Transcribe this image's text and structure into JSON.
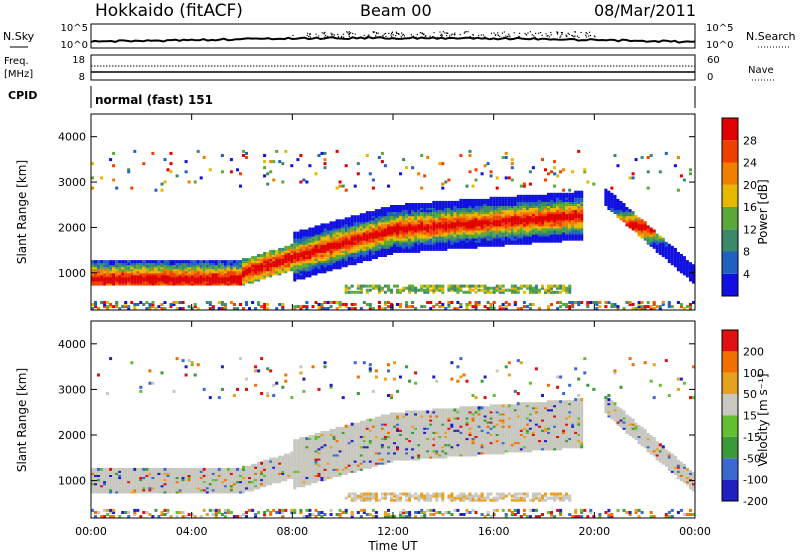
{
  "header": {
    "site": "Hokkaido (fitACF)",
    "beam": "Beam 00",
    "date": "08/Mar/2011"
  },
  "status_panels": {
    "nsky_label": "N.Sky",
    "nsearch_label": "N.Search",
    "noise_ticks": [
      "10^5",
      "10^0"
    ],
    "freq_label_1": "Freq.",
    "freq_label_2": "[MHz]",
    "freq_ticks": [
      "18",
      "8"
    ],
    "nave_ticks": [
      "60",
      "0"
    ],
    "nave_label": "Nave",
    "cpid_label": "CPID",
    "cpid_value": "normal (fast) 151"
  },
  "chart_data": [
    {
      "type": "heatmap",
      "quantity": "Power",
      "ylabel": "Slant Range [km]",
      "ylim": [
        180,
        4500
      ],
      "yticks": [
        "1000",
        "2000",
        "3000",
        "4000"
      ],
      "colorbar_label": "Power [dB]",
      "colorbar_ticks": [
        "4",
        "8",
        "12",
        "16",
        "20",
        "24",
        "28"
      ],
      "colors": [
        "#1010e0",
        "#2060c0",
        "#3a8a6a",
        "#5aa83a",
        "#e6b800",
        "#f08000",
        "#f04000",
        "#e00000"
      ],
      "features": [
        {
          "name": "main echo band",
          "time_start_h": 0,
          "time_end_h": 19.5,
          "range_km_start": 950,
          "range_km_end": 2150
        },
        {
          "name": "near-range band",
          "time_start_h": 10,
          "time_end_h": 19,
          "range_km_start": 550,
          "range_km_end": 700
        },
        {
          "name": "post-20UT descending echo",
          "time_start_h": 20.3,
          "time_end_h": 24,
          "range_km_start": 2700,
          "range_km_end": 900
        }
      ]
    },
    {
      "type": "heatmap",
      "quantity": "Velocity",
      "xlabel": "Time UT",
      "xticks": [
        "00:00",
        "04:00",
        "08:00",
        "12:00",
        "16:00",
        "20:00",
        "00:00"
      ],
      "ylabel": "Slant Range [km]",
      "ylim": [
        180,
        4500
      ],
      "yticks": [
        "1000",
        "2000",
        "3000",
        "4000"
      ],
      "colorbar_label": "Velocity [m s⁻¹]",
      "colorbar_ticks": [
        "200",
        "100",
        "50",
        "15",
        "-15",
        "-50",
        "-100",
        "-200"
      ],
      "colors": [
        "#2020c0",
        "#3a6ad0",
        "#3a9a3a",
        "#60c030",
        "#c8c8c0",
        "#e8a020",
        "#f07000",
        "#e01010"
      ],
      "features": [
        {
          "name": "ground scatter band",
          "time_start_h": 0,
          "time_end_h": 19.5,
          "range_km_start": 1000,
          "range_km_end": 2600,
          "velocity_ms": 0
        }
      ]
    }
  ]
}
